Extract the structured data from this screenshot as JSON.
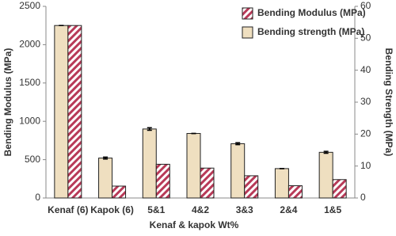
{
  "chart_data": {
    "type": "bar",
    "x_label": "Kenaf & kapok Wt%",
    "y_label": "Bending Modulus (MPa)",
    "y2_label": "Bending Strength (MPa)",
    "categories": [
      "Kenaf (6)",
      "Kapok (6)",
      "5&1",
      "4&2",
      "3&3",
      "2&4",
      "1&5"
    ],
    "series": [
      {
        "name": "Bending Modulus (MPa)",
        "color": "#b83a58",
        "hatch": true,
        "values": [
          2250,
          155,
          440,
          390,
          290,
          160,
          240
        ]
      },
      {
        "name": "Bending strength (MPa)",
        "color": "#efdfc0",
        "axis": "y2",
        "values": [
          54,
          12.5,
          21.6,
          20.2,
          17,
          9.2,
          14.3
        ],
        "errors": [
          0,
          0.3,
          0.4,
          0,
          0.3,
          0,
          0.3
        ]
      }
    ],
    "ylim": [
      0,
      2500
    ],
    "yticks": [
      0,
      500,
      1000,
      1500,
      2000,
      2500
    ],
    "y2lim": [
      0,
      60
    ],
    "y2ticks": [
      0,
      10,
      20,
      30,
      40,
      50,
      60
    ],
    "grid": false,
    "legend": "upper right"
  }
}
